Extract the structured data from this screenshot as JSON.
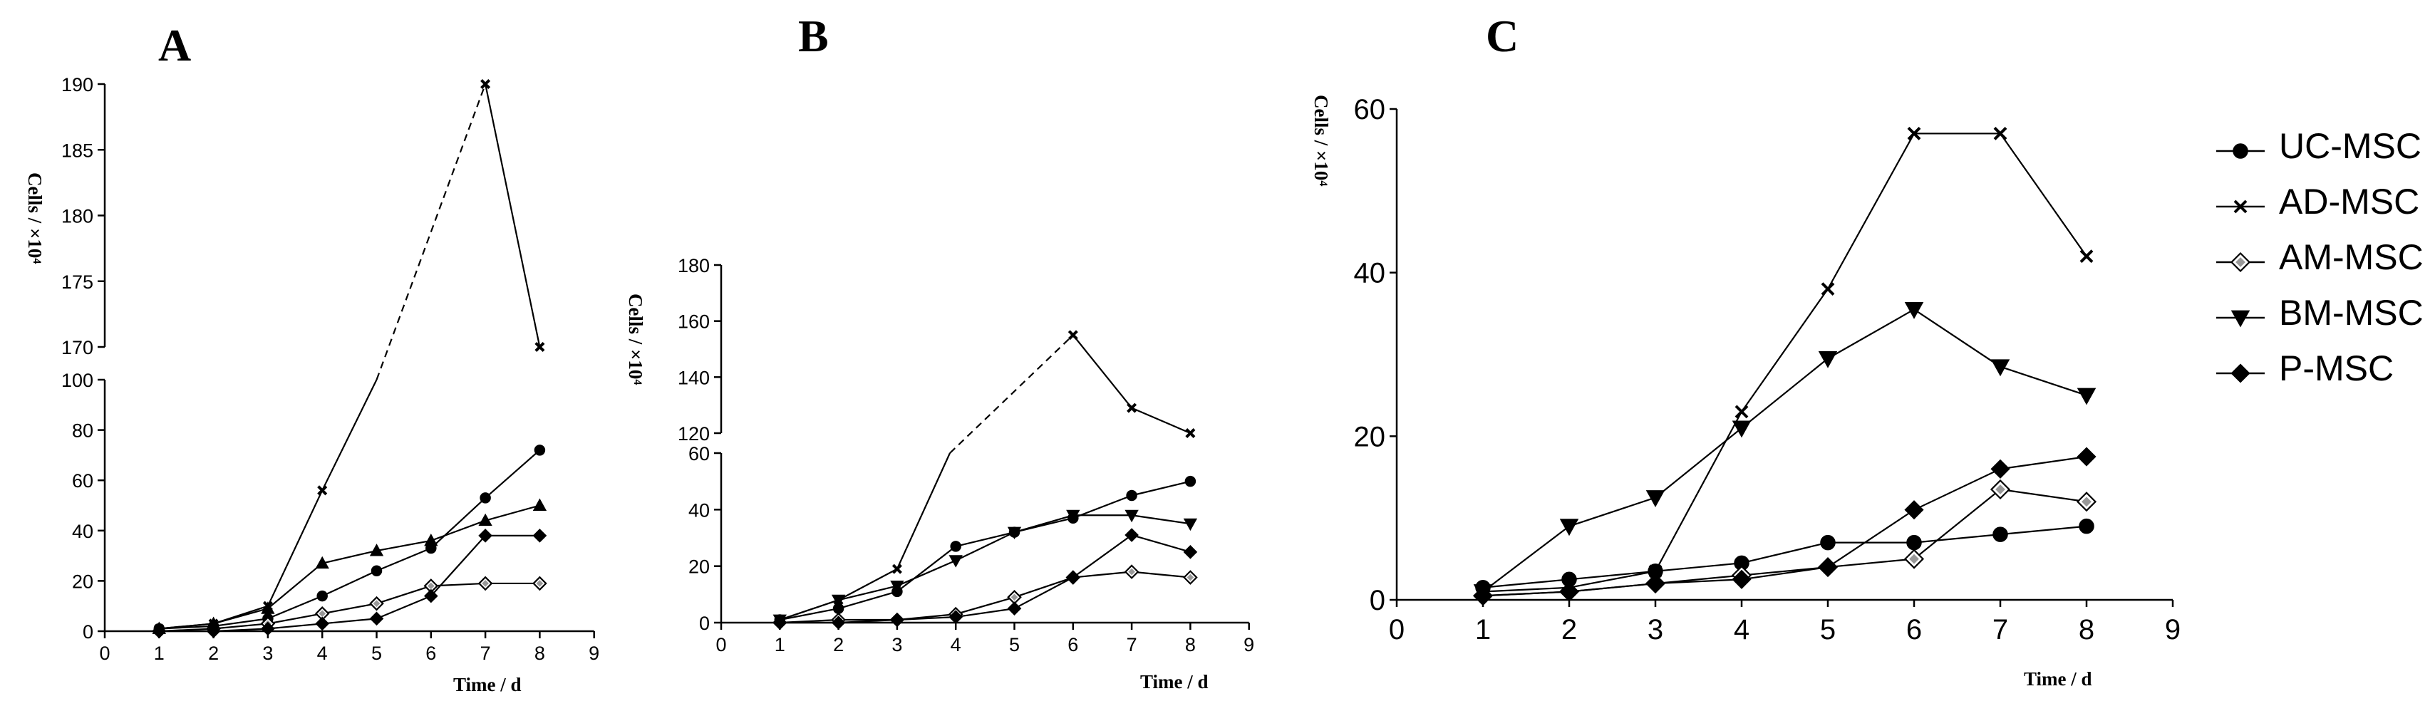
{
  "chart_data": [
    {
      "type": "line",
      "title": "A",
      "xlabel": "Time / d",
      "ylabel": "Cells / ×10⁴",
      "xlim": [
        0,
        9
      ],
      "x_ticks": [
        "0",
        "1",
        "2",
        "3",
        "4",
        "5",
        "6",
        "7",
        "8",
        "9"
      ],
      "broken_axis": true,
      "lower_ylim": [
        0,
        100
      ],
      "lower_ticks": [
        "0",
        "20",
        "40",
        "60",
        "80",
        "100"
      ],
      "upper_ylim": [
        170,
        190
      ],
      "upper_ticks": [
        "170",
        "175",
        "180",
        "185",
        "190"
      ],
      "series": [
        {
          "name": "UC-MSC",
          "marker": "circle",
          "x": [
            1,
            2,
            3,
            4,
            5,
            6,
            7,
            8
          ],
          "values": [
            1,
            2,
            5,
            14,
            24,
            33,
            53,
            72
          ]
        },
        {
          "name": "AD-MSC",
          "marker": "x",
          "x": [
            1,
            2,
            3,
            4,
            5,
            7,
            8
          ],
          "values": [
            1,
            3,
            10,
            56,
            100,
            190,
            170
          ],
          "dashed_segment": [
            5,
            7
          ]
        },
        {
          "name": "AM-MSC",
          "marker": "diamond-open",
          "x": [
            1,
            2,
            3,
            4,
            5,
            6,
            7,
            8
          ],
          "values": [
            0,
            1,
            3,
            7,
            11,
            18,
            19,
            19
          ]
        },
        {
          "name": "BM-MSC",
          "marker": "triangle-up",
          "x": [
            1,
            2,
            3,
            4,
            5,
            6,
            7,
            8
          ],
          "values": [
            1,
            3,
            9,
            27,
            32,
            36,
            44,
            50
          ]
        },
        {
          "name": "P-MSC",
          "marker": "diamond",
          "x": [
            1,
            2,
            3,
            4,
            5,
            6,
            7,
            8
          ],
          "values": [
            0,
            0,
            1,
            3,
            5,
            14,
            38,
            38
          ]
        }
      ]
    },
    {
      "type": "line",
      "title": "B",
      "xlabel": "Time / d",
      "ylabel": "Cells / ×10⁴",
      "xlim": [
        0,
        9
      ],
      "x_ticks": [
        "0",
        "1",
        "2",
        "3",
        "4",
        "5",
        "6",
        "7",
        "8",
        "9"
      ],
      "broken_axis": true,
      "lower_ylim": [
        0,
        60
      ],
      "lower_ticks": [
        "0",
        "20",
        "40",
        "60"
      ],
      "upper_ylim": [
        120,
        180
      ],
      "upper_ticks": [
        "120",
        "140",
        "160",
        "180"
      ],
      "series": [
        {
          "name": "UC-MSC",
          "marker": "circle",
          "x": [
            1,
            2,
            3,
            4,
            5,
            6,
            7,
            8
          ],
          "values": [
            1,
            5,
            11,
            27,
            32,
            37,
            45,
            50
          ]
        },
        {
          "name": "AD-MSC",
          "marker": "x",
          "x": [
            1,
            2,
            3,
            3.9,
            6,
            7,
            8
          ],
          "values": [
            1,
            8,
            19,
            60,
            155,
            129,
            120
          ],
          "dashed_segment": [
            3.9,
            6
          ]
        },
        {
          "name": "AM-MSC",
          "marker": "diamond-open",
          "x": [
            1,
            2,
            3,
            4,
            5,
            6,
            7,
            8
          ],
          "values": [
            0,
            1,
            1,
            3,
            9,
            16,
            18,
            16
          ]
        },
        {
          "name": "BM-MSC",
          "marker": "triangle-down",
          "x": [
            1,
            2,
            3,
            4,
            5,
            6,
            7,
            8
          ],
          "values": [
            1,
            8,
            13,
            22,
            32,
            38,
            38,
            35
          ]
        },
        {
          "name": "P-MSC",
          "marker": "diamond",
          "x": [
            1,
            2,
            3,
            4,
            5,
            6,
            7,
            8
          ],
          "values": [
            0,
            0,
            1,
            2,
            5,
            16,
            31,
            25
          ]
        }
      ]
    },
    {
      "type": "line",
      "title": "C",
      "xlabel": "Time / d",
      "ylabel": "Cells / ×10⁴",
      "xlim": [
        0,
        9
      ],
      "ylim": [
        0,
        60
      ],
      "x_ticks": [
        "0",
        "1",
        "2",
        "3",
        "4",
        "5",
        "6",
        "7",
        "8",
        "9"
      ],
      "y_ticks": [
        "0",
        "20",
        "40",
        "60"
      ],
      "series": [
        {
          "name": "UC-MSC",
          "marker": "circle",
          "x": [
            1,
            2,
            3,
            4,
            5,
            6,
            7,
            8
          ],
          "values": [
            1.5,
            2.5,
            3.5,
            4.5,
            7,
            7,
            8,
            9
          ]
        },
        {
          "name": "AD-MSC",
          "marker": "x",
          "x": [
            1,
            2,
            3,
            4,
            5,
            6,
            7,
            8
          ],
          "values": [
            1,
            1.5,
            3.5,
            23,
            38,
            57,
            57,
            42
          ]
        },
        {
          "name": "AM-MSC",
          "marker": "diamond-open",
          "x": [
            1,
            2,
            3,
            4,
            5,
            6,
            7,
            8
          ],
          "values": [
            0.5,
            1,
            2,
            3,
            4,
            5,
            13.5,
            12
          ]
        },
        {
          "name": "BM-MSC",
          "marker": "triangle-down",
          "x": [
            1,
            2,
            3,
            4,
            5,
            6,
            7,
            8
          ],
          "values": [
            1,
            9,
            12.5,
            21,
            29.5,
            35.5,
            28.5,
            25
          ]
        },
        {
          "name": "P-MSC",
          "marker": "diamond",
          "x": [
            1,
            2,
            3,
            4,
            5,
            6,
            7,
            8
          ],
          "values": [
            0.5,
            1,
            2,
            2.5,
            4,
            11,
            16,
            17.5
          ]
        }
      ]
    }
  ],
  "legend": {
    "entries": [
      {
        "label": "UC-MSC",
        "marker": "circle"
      },
      {
        "label": "AD-MSC",
        "marker": "x"
      },
      {
        "label": "AM-MSC",
        "marker": "diamond-open"
      },
      {
        "label": "BM-MSC",
        "marker": "triangle-down"
      },
      {
        "label": "P-MSC",
        "marker": "diamond"
      }
    ]
  }
}
